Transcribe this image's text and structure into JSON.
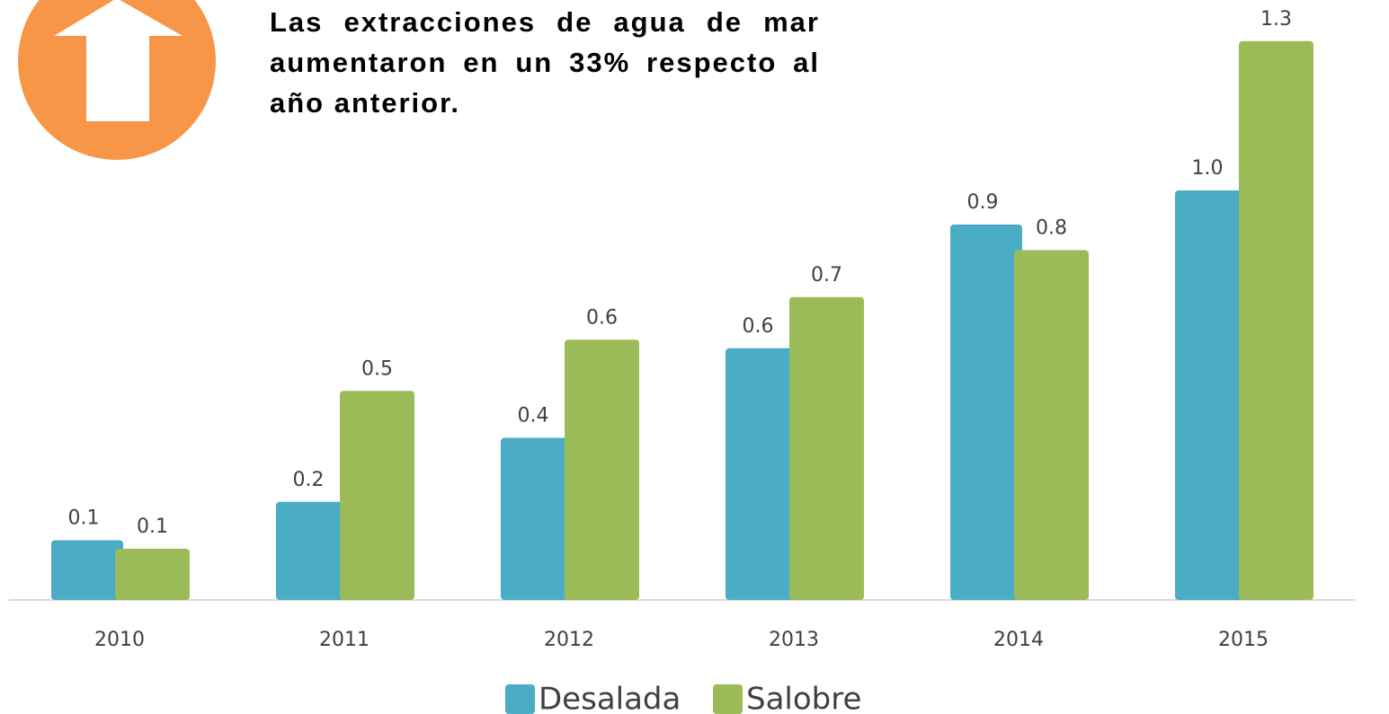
{
  "chart_data": {
    "type": "bar",
    "title": "Las extracciones de agua de mar aumentaron en un 33% respecto al año anterior.",
    "categories": [
      "2010",
      "2011",
      "2012",
      "2013",
      "2014",
      "2015"
    ],
    "series": [
      {
        "name": "Desalada",
        "color": "#4bacc6",
        "values": [
          0.14,
          0.23,
          0.38,
          0.59,
          0.88,
          0.96
        ],
        "value_labels": [
          "0.1",
          "0.2",
          "0.4",
          "0.6",
          "0.9",
          "1.0"
        ]
      },
      {
        "name": "Salobre",
        "color": "#9bbb59",
        "values": [
          0.12,
          0.49,
          0.61,
          0.71,
          0.82,
          1.31
        ],
        "value_labels": [
          "0.1",
          "0.5",
          "0.6",
          "0.7",
          "0.8",
          "1.3"
        ]
      }
    ],
    "ylim": [
      0,
      1.4
    ],
    "legend": "bottom"
  }
}
